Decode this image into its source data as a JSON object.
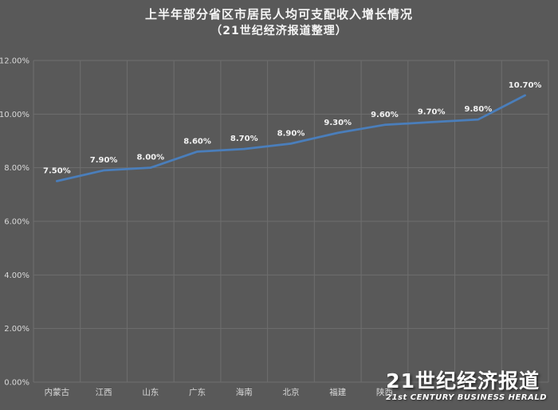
{
  "title": "上半年部分省区市居民人均可支配收入增长情况",
  "subtitle": "（21世纪经济报道整理）",
  "chart_data": {
    "type": "line",
    "categories": [
      "内蒙古",
      "江西",
      "山东",
      "广东",
      "海南",
      "北京",
      "福建",
      "陕西",
      "",
      "",
      ""
    ],
    "values": [
      7.5,
      7.9,
      8.0,
      8.6,
      8.7,
      8.9,
      9.3,
      9.6,
      9.7,
      9.8,
      10.7
    ],
    "point_labels": [
      "7.50%",
      "7.90%",
      "8.00%",
      "8.60%",
      "8.70%",
      "8.90%",
      "9.30%",
      "9.60%",
      "9.70%",
      "9.80%",
      "10.70%"
    ],
    "yticks": [
      "0.00%",
      "2.00%",
      "4.00%",
      "6.00%",
      "8.00%",
      "10.00%",
      "12.00%"
    ],
    "ytick_values": [
      0,
      2,
      4,
      6,
      8,
      10,
      12
    ],
    "ylim": [
      0,
      12
    ],
    "grid": true,
    "legend_position": "none",
    "xlabel": "",
    "ylabel": ""
  },
  "watermark": {
    "line1": "21世纪经济报道",
    "line2": "21st CENTURY BUSINESS HERALD"
  },
  "colors": {
    "background": "#595959",
    "grid": "#6e6e6e",
    "axis_text": "#d9d9d9",
    "title_text": "#f5f5f5",
    "line": "#4a7ebb",
    "point_label_text": "#f2f2f2"
  }
}
